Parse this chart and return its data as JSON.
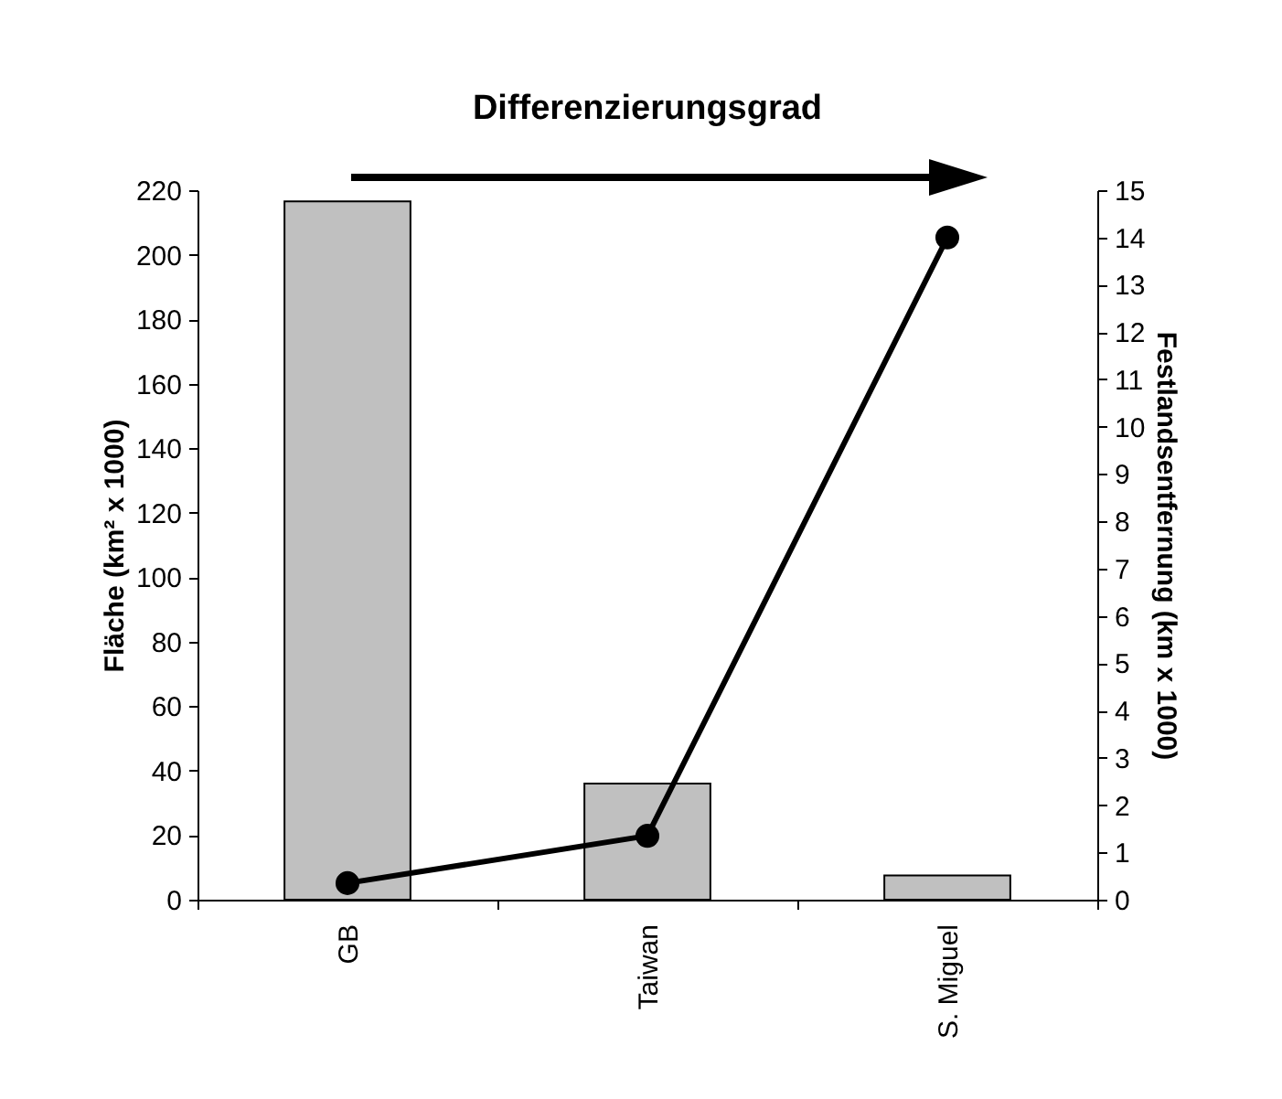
{
  "chart_data": {
    "type": "bar",
    "title": "Differenzierungsgrad",
    "ylabel": "Fläche (km² x 1000)",
    "y2label": "Festlandsentfernung (km x 1000)",
    "categories": [
      "GB",
      "Taiwan",
      "S. Miguel"
    ],
    "series": [
      {
        "color": "#c0c0c0",
        "values": [
          216.5,
          36,
          7.5
        ]
      },
      {
        "type": "line",
        "axis": "y2",
        "color": "#000000",
        "values": [
          0.35,
          1.35,
          14
        ]
      }
    ],
    "ylim": [
      0,
      220
    ],
    "yticks": [
      0,
      20,
      40,
      60,
      80,
      100,
      120,
      140,
      160,
      180,
      200,
      220
    ],
    "y2lim": [
      0,
      15
    ],
    "y2ticks": [
      0,
      1,
      2,
      3,
      4,
      5,
      6,
      7,
      8,
      9,
      10,
      11,
      12,
      13,
      14,
      15
    ],
    "marker": "circle",
    "grid": false
  }
}
